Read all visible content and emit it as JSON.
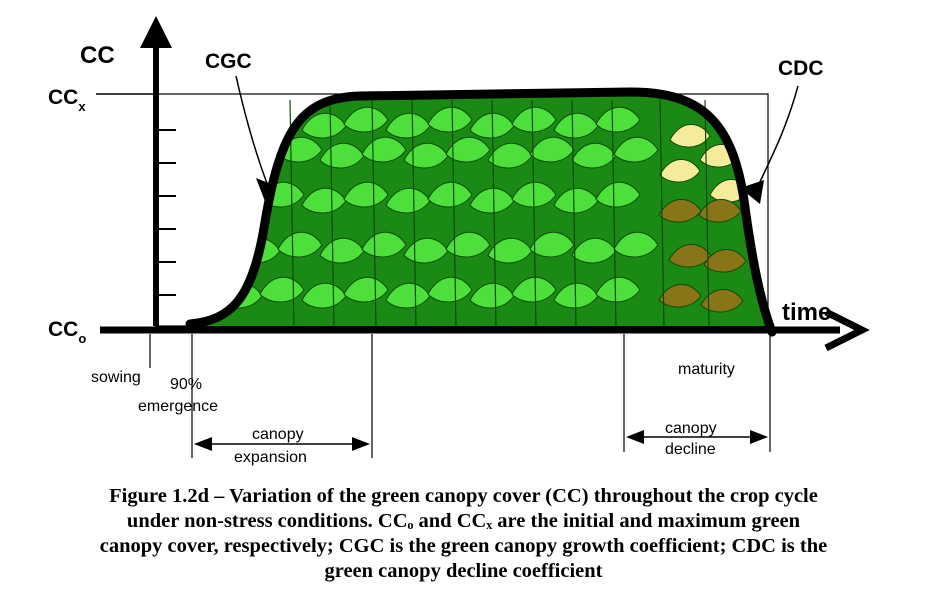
{
  "figure": {
    "y_axis_label": "CC",
    "cc_max_label": "CC",
    "cc_max_sub": "x",
    "cc_min_label": "CC",
    "cc_min_sub": "o",
    "x_axis_label": "time",
    "cgc_label": "CGC",
    "cdc_label": "CDC",
    "sowing_label": "sowing",
    "emergence_line1": "90%",
    "emergence_line2": "emergence",
    "maturity_label": "maturity",
    "expansion_line1": "canopy",
    "expansion_line2": "expansion",
    "decline_line1": "canopy",
    "decline_line2": "decline",
    "colors": {
      "canopy_fill": "#1a8a14",
      "leaf_green": "#4de03a",
      "leaf_brown": "#8a7418",
      "leaf_pale": "#f4ec9a"
    }
  },
  "caption": {
    "line1": "Figure 1.2d – Variation of the green canopy cover (CC) throughout the crop cycle",
    "line2": "under non-stress conditions. CCₒ and CCₓ are the initial and maximum green",
    "line3": "canopy cover, respectively; CGC is the green canopy growth coefficient; CDC is the",
    "line4": "green canopy decline coefficient"
  }
}
